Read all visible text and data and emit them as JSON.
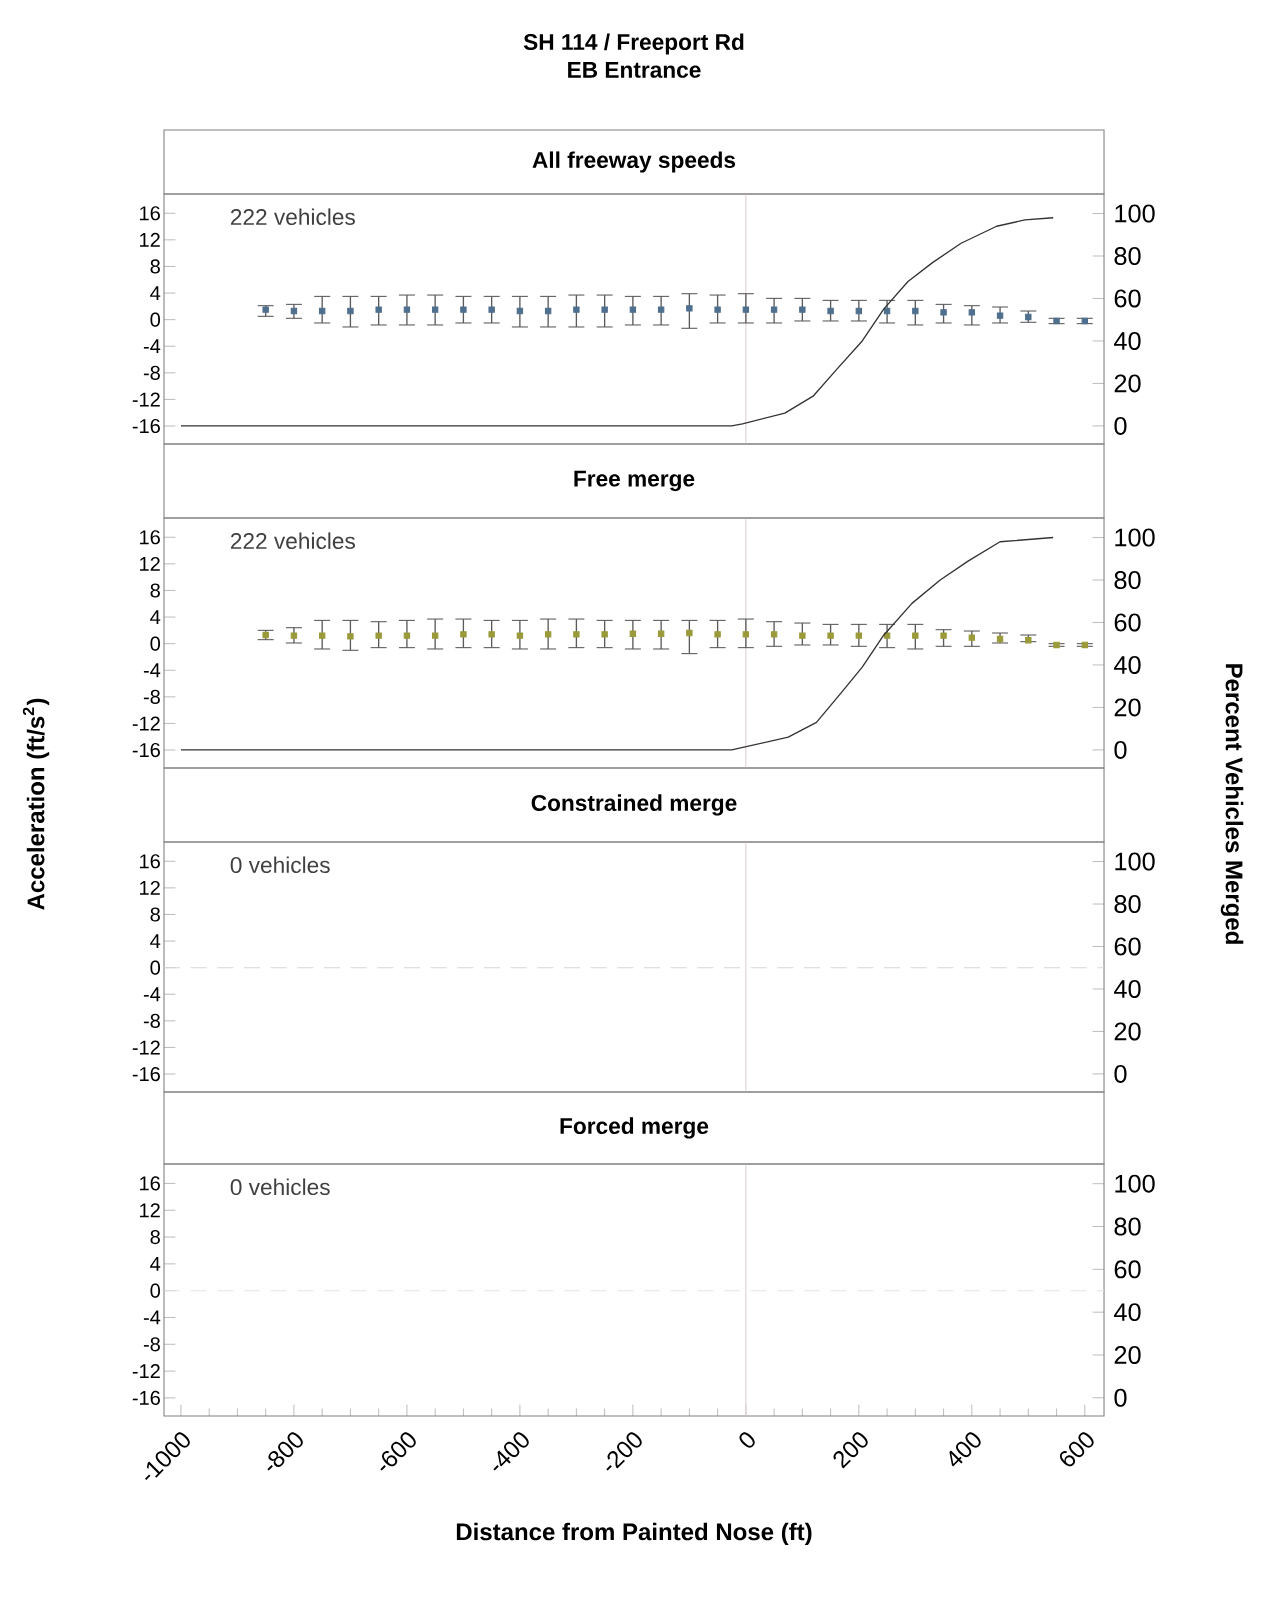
{
  "chart_data": [
    {
      "type": "scatter",
      "title": "All freeway speeds",
      "annotations": [
        "SH 114 / Freeport Rd",
        "EB Entrance",
        "222 vehicles"
      ],
      "xlim": [
        -1030,
        634
      ],
      "ylim": [
        -18.7,
        18.9
      ],
      "yticks": [
        -16,
        -12,
        -8,
        -4,
        0,
        4,
        8,
        12,
        16
      ],
      "y2lim": [
        -8.5,
        109.2
      ],
      "y2ticks": [
        0,
        20,
        40,
        60,
        80,
        100
      ],
      "tick_labels": "y",
      "marker": "square",
      "ref_lines": [
        {
          "axis": "x",
          "value": 0,
          "color": "#e0d0d0"
        }
      ],
      "series": [
        {
          "color": "#4f6f8f",
          "x": [
            -850,
            -800,
            -750,
            -700,
            -650,
            -600,
            -550,
            -500,
            -450,
            -400,
            -350,
            -300,
            -250,
            -200,
            -150,
            -100,
            -50,
            0,
            50,
            100,
            150,
            200,
            250,
            300,
            350,
            400,
            450,
            500,
            550,
            600
          ],
          "values": [
            1.5,
            1.3,
            1.3,
            1.3,
            1.5,
            1.5,
            1.5,
            1.5,
            1.5,
            1.3,
            1.3,
            1.5,
            1.5,
            1.5,
            1.5,
            1.7,
            1.5,
            1.5,
            1.5,
            1.5,
            1.3,
            1.3,
            1.3,
            1.3,
            1.1,
            1.1,
            0.6,
            0.4,
            -0.2,
            -0.2
          ],
          "errors": [
            [
              0.5,
              2.1
            ],
            [
              0.2,
              2.3
            ],
            [
              -0.5,
              3.5
            ],
            [
              -1.1,
              3.5
            ],
            [
              -0.8,
              3.5
            ],
            [
              -0.8,
              3.7
            ],
            [
              -0.8,
              3.7
            ],
            [
              -0.5,
              3.5
            ],
            [
              -0.5,
              3.5
            ],
            [
              -1.1,
              3.5
            ],
            [
              -1.1,
              3.5
            ],
            [
              -1.1,
              3.7
            ],
            [
              -1.1,
              3.7
            ],
            [
              -0.8,
              3.5
            ],
            [
              -0.8,
              3.5
            ],
            [
              -1.3,
              3.9
            ],
            [
              -0.5,
              3.7
            ],
            [
              -0.5,
              3.9
            ],
            [
              -0.5,
              3.2
            ],
            [
              -0.2,
              3.2
            ],
            [
              -0.2,
              2.9
            ],
            [
              -0.2,
              2.9
            ],
            [
              -0.5,
              2.9
            ],
            [
              -0.8,
              2.9
            ],
            [
              -0.5,
              2.3
            ],
            [
              -0.8,
              2.1
            ],
            [
              -0.5,
              1.9
            ],
            [
              -0.4,
              1.3
            ],
            [
              -0.6,
              0.2
            ],
            [
              -0.6,
              0.2
            ]
          ]
        },
        {
          "type": "line",
          "axis": "y2",
          "color": "#333333",
          "x": [
            -1000,
            -25,
            -6,
            69,
            119,
            162,
            206,
            244,
            287,
            331,
            381,
            444,
            494,
            544
          ],
          "marker": "none",
          "values": [
            0,
            0,
            1,
            6,
            14,
            27,
            40,
            55,
            68,
            77,
            86,
            94,
            97,
            98
          ]
        }
      ]
    },
    {
      "type": "scatter",
      "title": "Free merge",
      "annotations": [
        "222 vehicles"
      ],
      "ylabel": "Acceleration (ft/s$^{2}$)",
      "y2label": "Percent Vehicles Merged",
      "xlim": [
        -1030,
        634
      ],
      "ylim": [
        -18.7,
        18.9
      ],
      "yticks": [
        -16,
        -12,
        -8,
        -4,
        0,
        4,
        8,
        12,
        16
      ],
      "y2lim": [
        -8.5,
        109.2
      ],
      "y2ticks": [
        0,
        20,
        40,
        60,
        80,
        100
      ],
      "tick_labels": "y",
      "marker": "square",
      "ref_lines": [
        {
          "axis": "x",
          "value": 0,
          "color": "#e0d0d0"
        }
      ],
      "series": [
        {
          "color": "#9a9a3a",
          "x": [
            -850,
            -800,
            -750,
            -700,
            -650,
            -600,
            -550,
            -500,
            -450,
            -400,
            -350,
            -300,
            -250,
            -200,
            -150,
            -100,
            -50,
            0,
            50,
            100,
            150,
            200,
            250,
            300,
            350,
            400,
            450,
            500,
            550,
            600
          ],
          "values": [
            1.3,
            1.2,
            1.2,
            1.1,
            1.2,
            1.2,
            1.2,
            1.4,
            1.4,
            1.2,
            1.4,
            1.4,
            1.4,
            1.5,
            1.5,
            1.6,
            1.4,
            1.4,
            1.4,
            1.2,
            1.2,
            1.2,
            1.2,
            1.2,
            1.2,
            0.9,
            0.7,
            0.5,
            -0.2,
            -0.2
          ],
          "errors": [
            [
              0.6,
              2.0
            ],
            [
              0.1,
              2.4
            ],
            [
              -0.8,
              3.5
            ],
            [
              -1.0,
              3.5
            ],
            [
              -0.6,
              3.3
            ],
            [
              -0.6,
              3.5
            ],
            [
              -0.8,
              3.7
            ],
            [
              -0.6,
              3.7
            ],
            [
              -0.6,
              3.5
            ],
            [
              -0.8,
              3.5
            ],
            [
              -0.8,
              3.7
            ],
            [
              -0.6,
              3.7
            ],
            [
              -0.6,
              3.5
            ],
            [
              -0.8,
              3.5
            ],
            [
              -0.8,
              3.5
            ],
            [
              -1.5,
              3.5
            ],
            [
              -0.6,
              3.5
            ],
            [
              -0.6,
              3.7
            ],
            [
              -0.4,
              3.3
            ],
            [
              -0.2,
              3.1
            ],
            [
              -0.2,
              2.9
            ],
            [
              -0.4,
              2.9
            ],
            [
              -0.6,
              2.9
            ],
            [
              -0.8,
              2.9
            ],
            [
              -0.4,
              2.1
            ],
            [
              -0.4,
              1.9
            ],
            [
              0.1,
              1.6
            ],
            [
              0.3,
              1.3
            ],
            [
              -0.4,
              0.0
            ],
            [
              -0.4,
              0.0
            ]
          ]
        },
        {
          "type": "line",
          "axis": "y2",
          "color": "#333333",
          "x": [
            -1000,
            -25,
            75,
            125,
            169,
            206,
            244,
            294,
            344,
            394,
            450,
            544
          ],
          "marker": "none",
          "values": [
            0,
            0,
            6,
            13,
            27,
            39,
            54,
            69,
            80,
            89,
            98,
            100
          ]
        }
      ]
    },
    {
      "type": "scatter",
      "title": "Constrained merge",
      "annotations": [
        "0 vehicles"
      ],
      "xlim": [
        -1030,
        634
      ],
      "ylim": [
        -18.7,
        18.9
      ],
      "yticks": [
        -16,
        -12,
        -8,
        -4,
        0,
        4,
        8,
        12,
        16
      ],
      "y2lim": [
        -8.5,
        109.2
      ],
      "y2ticks": [
        0,
        20,
        40,
        60,
        80,
        100
      ],
      "tick_labels": "y",
      "ref_lines": [
        {
          "axis": "x",
          "value": 0,
          "color": "#e0d0d0"
        },
        {
          "axis": "y",
          "value": 0,
          "color": "#d8d8d8",
          "line_style": "dashed"
        }
      ]
    },
    {
      "type": "scatter",
      "title": "Forced merge",
      "annotations": [
        "0 vehicles"
      ],
      "xlabel": "Distance from Painted Nose (ft)",
      "xlim": [
        -1030,
        634
      ],
      "xticks": [
        -1000,
        -800,
        -600,
        -400,
        -200,
        0,
        200,
        400,
        600
      ],
      "ylim": [
        -18.7,
        18.9
      ],
      "yticks": [
        -16,
        -12,
        -8,
        -4,
        0,
        4,
        8,
        12,
        16
      ],
      "y2lim": [
        -8.5,
        109.2
      ],
      "y2ticks": [
        0,
        20,
        40,
        60,
        80,
        100
      ],
      "ref_lines": [
        {
          "axis": "x",
          "value": 0,
          "color": "#e0d0d0"
        },
        {
          "axis": "y",
          "value": 0,
          "color": "#e4e4e4",
          "line_style": "dashed"
        }
      ]
    }
  ]
}
